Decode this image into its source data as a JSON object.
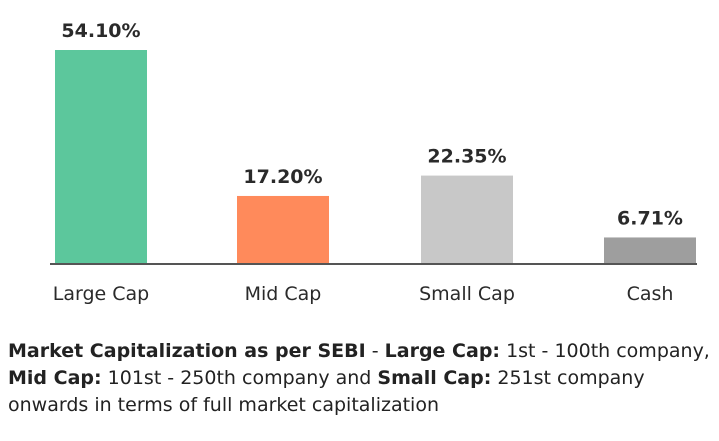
{
  "chart_data": {
    "type": "bar",
    "categories": [
      "Large Cap",
      "Mid Cap",
      "Small Cap",
      "Cash"
    ],
    "values": [
      54.1,
      17.2,
      22.35,
      6.71
    ],
    "value_labels": [
      "54.10%",
      "17.20%",
      "22.35%",
      "6.71%"
    ],
    "colors": [
      "#5cc79c",
      "#ff8a5b",
      "#c8c8c8",
      "#9e9e9e"
    ],
    "baseline_color": "#555555",
    "title": "",
    "xlabel": "",
    "ylabel": "",
    "ylim": [
      0,
      54.1
    ],
    "grid": false,
    "legend": "none"
  },
  "footnote": {
    "b1": "Market Capitalization as per SEBI",
    "t1": " - ",
    "b2": "Large Cap:",
    "t2": " 1st - 100th company, ",
    "b3": "Mid Cap:",
    "t3": " 101st - 250th company and ",
    "b4": "Small Cap:",
    "t4": " 251st company onwards in terms of full market capitalization"
  }
}
